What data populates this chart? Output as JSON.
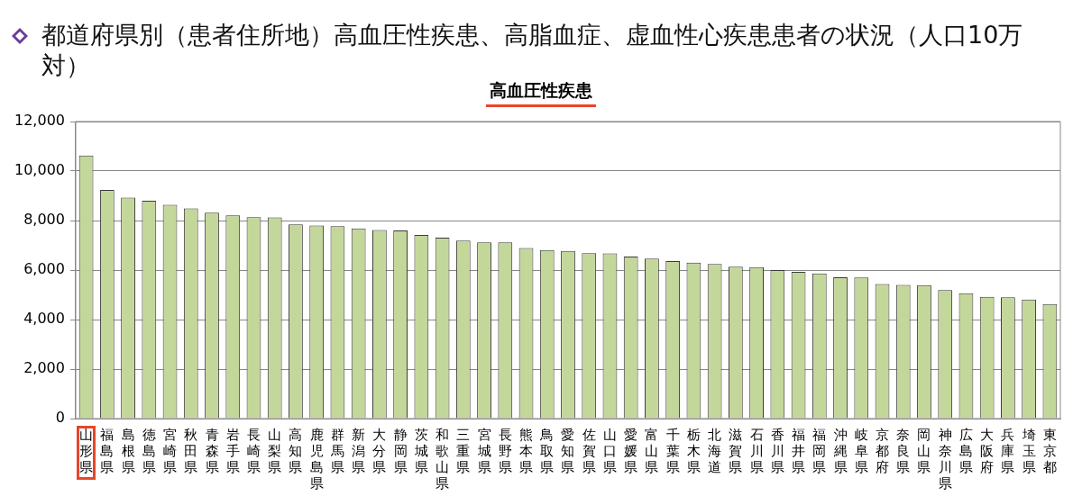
{
  "chart_data": {
    "type": "bar",
    "title": "都道府県別（患者住所地）高血圧性疾患、高脂血症、虚血性心疾患患者の状況（人口10万対）",
    "subtitle": "高血圧性疾患",
    "categories": [
      "山形県",
      "福島県",
      "島根県",
      "徳島県",
      "宮崎県",
      "秋田県",
      "青森県",
      "岩手県",
      "長崎県",
      "山梨県",
      "高知県",
      "鹿児島県",
      "群馬県",
      "新潟県",
      "大分県",
      "静岡県",
      "茨城県",
      "和歌山県",
      "三重県",
      "宮城県",
      "長野県",
      "熊本県",
      "鳥取県",
      "愛知県",
      "佐賀県",
      "山口県",
      "愛媛県",
      "富山県",
      "千葉県",
      "栃木県",
      "北海道",
      "滋賀県",
      "石川県",
      "香川県",
      "福井県",
      "福岡県",
      "沖縄県",
      "岐阜県",
      "京都府",
      "奈良県",
      "岡山県",
      "神奈川県",
      "広島県",
      "大阪府",
      "兵庫県",
      "埼玉県",
      "東京都"
    ],
    "values": [
      10630,
      9240,
      8930,
      8800,
      8640,
      8490,
      8320,
      8210,
      8140,
      8130,
      7850,
      7800,
      7770,
      7680,
      7620,
      7600,
      7420,
      7310,
      7190,
      7120,
      7120,
      6890,
      6810,
      6770,
      6680,
      6670,
      6550,
      6460,
      6360,
      6300,
      6250,
      6140,
      6120,
      6000,
      5930,
      5860,
      5710,
      5700,
      5440,
      5400,
      5390,
      5190,
      5060,
      4920,
      4900,
      4810,
      4630
    ],
    "color": "#c4d79b",
    "ylim": [
      0,
      12000
    ],
    "yticks": [
      {
        "value": 0,
        "label": "0"
      },
      {
        "value": 2000,
        "label": "2,000"
      },
      {
        "value": 4000,
        "label": "4,000"
      },
      {
        "value": 6000,
        "label": "6,000"
      },
      {
        "value": 8000,
        "label": "8,000"
      },
      {
        "value": 10000,
        "label": "10,000"
      },
      {
        "value": 12000,
        "label": "12,000"
      }
    ],
    "grid": "y"
  }
}
